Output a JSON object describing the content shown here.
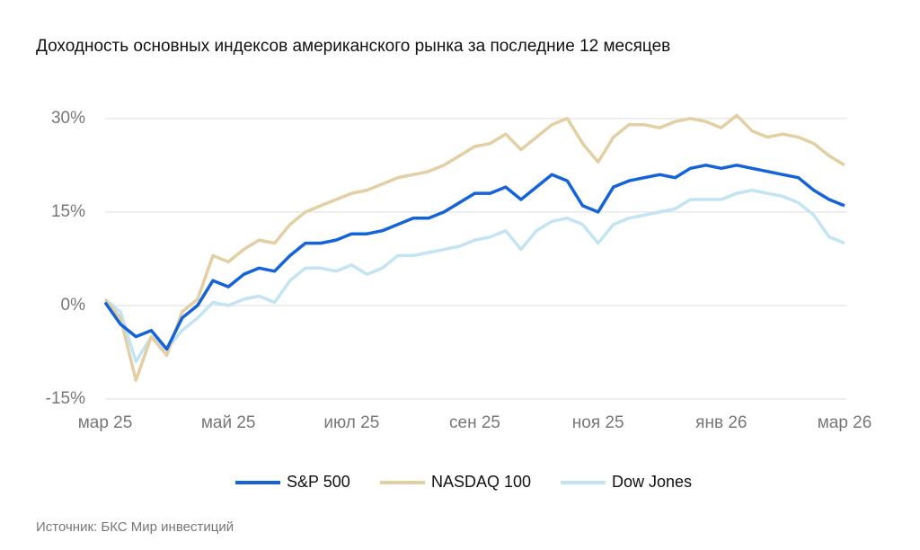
{
  "chart_data": {
    "type": "line",
    "title": "Доходность основных индексов американского рынка за последние 12 месяцев",
    "source": "Источник: БКС Мир инвестиций",
    "categories": [
      "мар 25",
      null,
      null,
      null,
      null,
      null,
      null,
      null,
      "май 25",
      null,
      null,
      null,
      null,
      null,
      null,
      null,
      "июл 25",
      null,
      null,
      null,
      null,
      null,
      null,
      null,
      "сен 25",
      null,
      null,
      null,
      null,
      null,
      null,
      null,
      "ноя 25",
      null,
      null,
      null,
      null,
      null,
      null,
      null,
      "янв 26",
      null,
      null,
      null,
      null,
      null,
      null,
      null,
      "мар 26"
    ],
    "series": [
      {
        "name": "S&P 500",
        "color": "#1463d9",
        "values": [
          0.5,
          -3,
          -5,
          -4,
          -7,
          -2,
          0,
          4,
          3,
          5,
          6,
          5.5,
          8,
          10,
          10,
          10.5,
          11.5,
          11.5,
          12,
          13,
          14,
          14,
          15,
          16.5,
          18,
          18,
          19,
          17,
          19,
          21,
          20,
          16,
          15,
          19,
          20,
          20.5,
          21,
          20.5,
          22,
          22.5,
          22,
          22.5,
          22,
          21.5,
          21,
          20.5,
          18.5,
          17,
          16
        ]
      },
      {
        "name": "NASDAQ 100",
        "color": "#e3cfa4",
        "values": [
          1,
          -2,
          -12,
          -5,
          -8,
          -1,
          1,
          8,
          7,
          9,
          10.5,
          10,
          13,
          15,
          16,
          17,
          18,
          18.5,
          19.5,
          20.5,
          21,
          21.5,
          22.5,
          24,
          25.5,
          26,
          27.5,
          25,
          27,
          29,
          30,
          26,
          23,
          27,
          29,
          29,
          28.5,
          29.5,
          30,
          29.5,
          28.5,
          30.5,
          28,
          27,
          27.5,
          27,
          26,
          24,
          22.5
        ]
      },
      {
        "name": "Dow Jones",
        "color": "#c2e4f3",
        "values": [
          1,
          -1,
          -9,
          -5,
          -7,
          -4,
          -2,
          0.5,
          0,
          1,
          1.5,
          0.5,
          4,
          6,
          6,
          5.5,
          6.5,
          5,
          6,
          8,
          8,
          8.5,
          9,
          9.5,
          10.5,
          11,
          12,
          9,
          12,
          13.5,
          14,
          13,
          10,
          13,
          14,
          14.5,
          15,
          15.5,
          17,
          17,
          17,
          18,
          18.5,
          18,
          17.5,
          16.5,
          14.5,
          11,
          10
        ]
      }
    ],
    "ylim": [
      -15,
      33
    ],
    "yticks": [
      {
        "value": -15,
        "label": "-15%"
      },
      {
        "value": 0,
        "label": "0%"
      },
      {
        "value": 15,
        "label": "15%"
      },
      {
        "value": 30,
        "label": "30%"
      }
    ],
    "grid": true,
    "legend": "bottom"
  }
}
